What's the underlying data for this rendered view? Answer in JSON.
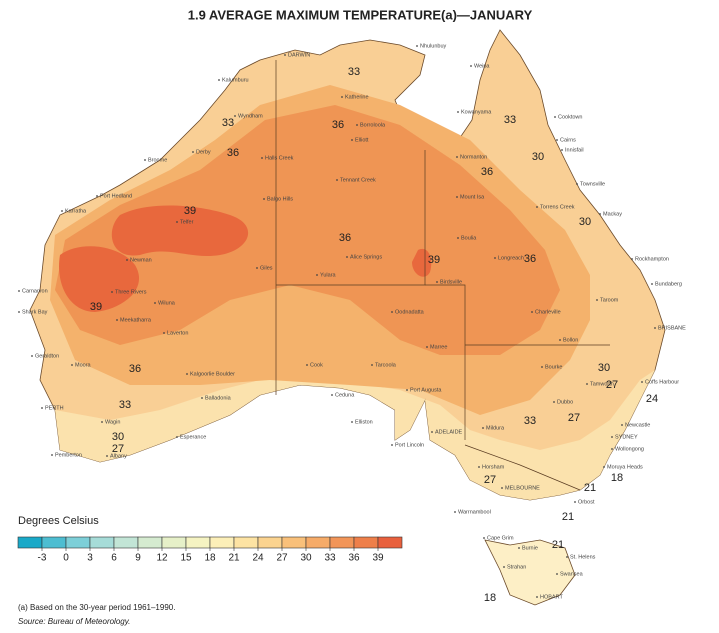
{
  "title": "1.9  AVERAGE MAXIMUM TEMPERATURE(a)—JANUARY",
  "legend": {
    "title": "Degrees Celsius",
    "ticks": [
      -3,
      0,
      3,
      6,
      9,
      12,
      15,
      18,
      21,
      24,
      27,
      30,
      33,
      36,
      39
    ],
    "colors": [
      "#1aa9c8",
      "#4dbdd1",
      "#7dcfd8",
      "#a6dcd8",
      "#c2e5d6",
      "#d5ebd0",
      "#e6f0c8",
      "#f5f3c2",
      "#fcefb8",
      "#fde3a3",
      "#fbd38f",
      "#f9c07a",
      "#f6ab68",
      "#f29558",
      "#ee7f4a",
      "#e8603d"
    ]
  },
  "contour_labels": [
    33,
    33,
    36,
    33,
    36,
    30,
    36,
    39,
    30,
    36,
    39,
    36,
    39,
    36,
    30,
    27,
    24,
    33,
    30,
    27,
    33,
    27,
    18,
    21,
    27,
    21,
    21,
    18
  ],
  "places": [
    "DARWIN",
    "Nhulunbuy",
    "Kalumburu",
    "Weipa",
    "Katherine",
    "Wyndham",
    "Kowanyama",
    "Cooktown",
    "Borroloola",
    "Derby",
    "Halls Creek",
    "Elliott",
    "Cairns",
    "Innisfail",
    "Normanton",
    "Broome",
    "Tennant Creek",
    "Townsville",
    "Port Hedland",
    "Balgo Hills",
    "Mount Isa",
    "Torrens Creek",
    "Karratha",
    "Telfer",
    "Mackay",
    "Boulia",
    "Alice Springs",
    "Newman",
    "Longreach",
    "Rockhampton",
    "Giles",
    "Yulara",
    "Birdsville",
    "Bundaberg",
    "Carnarvon",
    "Three Rivers",
    "Wiluna",
    "Shark Bay",
    "Meekatharra",
    "Oodnadatta",
    "Charleville",
    "Taroom",
    "BRISBANE",
    "Laverton",
    "Bollon",
    "Geraldton",
    "Marree",
    "Bourke",
    "Moora",
    "Cook",
    "Tarcoola",
    "Kalgoorlie Boulder",
    "Coffs Harbour",
    "Tamworth",
    "Ceduna",
    "Port Augusta",
    "Balladonia",
    "Dubbo",
    "PERTH",
    "Mildura",
    "Wagin",
    "Elliston",
    "Newcastle",
    "ADELAIDE",
    "Port Lincoln",
    "Esperance",
    "SYDNEY",
    "Wollongong",
    "Albany",
    "Pemberton",
    "Horsham",
    "Moruya Heads",
    "MELBOURNE",
    "Orbost",
    "Warrnambool",
    "Cape Grim",
    "Burnie",
    "St. Helens",
    "Strahan",
    "Swansea",
    "HOBART"
  ],
  "footnote": "(a) Based on the 30-year period 1961–1990.",
  "source": "Source: Bureau of Meteorology."
}
